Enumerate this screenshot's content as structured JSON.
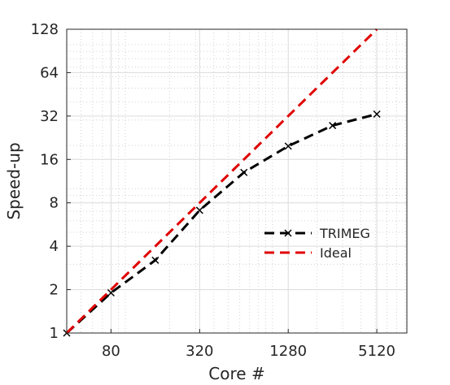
{
  "chart_data": {
    "type": "line",
    "xlabel": "Core #",
    "ylabel": "Speed-up",
    "x_scale": "log2",
    "y_scale": "log2",
    "xlim": [
      40,
      8192
    ],
    "ylim": [
      1,
      128
    ],
    "x_ticks": [
      80,
      320,
      1280,
      5120
    ],
    "y_ticks": [
      1,
      2,
      4,
      8,
      16,
      32,
      64,
      128
    ],
    "grid": true,
    "legend_position": "center-right",
    "series": [
      {
        "name": "TRIMEG",
        "color": "#000000",
        "line_style": "dashed",
        "marker": "x",
        "x": [
          40,
          80,
          160,
          320,
          640,
          1280,
          2560,
          5120
        ],
        "y": [
          1,
          1.9,
          3.2,
          7.1,
          13,
          19.8,
          27.5,
          33
        ]
      },
      {
        "name": "Ideal",
        "color": "#e00000",
        "line_style": "dashed",
        "marker": "none",
        "x": [
          40,
          5120
        ],
        "y": [
          1,
          128
        ]
      }
    ]
  }
}
